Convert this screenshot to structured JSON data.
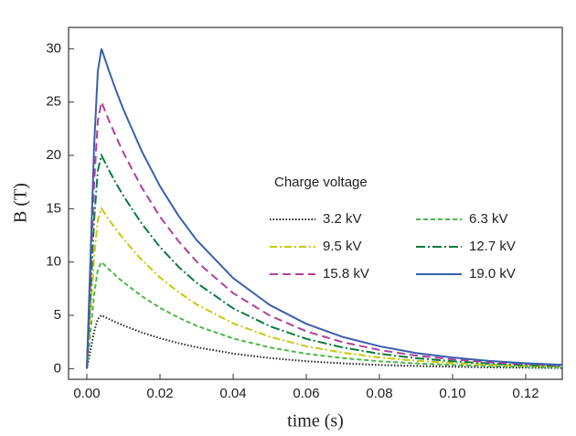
{
  "chart_data": {
    "type": "line",
    "x_label": "time (s)",
    "y_label": "B (T)",
    "legend_title": "Charge voltage",
    "x": [
      0,
      0.001,
      0.002,
      0.003,
      0.004,
      0.006,
      0.008,
      0.01,
      0.015,
      0.02,
      0.025,
      0.03,
      0.04,
      0.05,
      0.06,
      0.07,
      0.08,
      0.09,
      0.1,
      0.11,
      0.12,
      0.13
    ],
    "series": [
      {
        "name": "3.2 kV",
        "color": "#222222",
        "dash": "1.5,2",
        "values": [
          0,
          1.75,
          3.5,
          4.65,
          5,
          4.66,
          4.35,
          4.05,
          3.4,
          2.85,
          2.4,
          2.01,
          1.42,
          1,
          0.7,
          0.5,
          0.35,
          0.25,
          0.18,
          0.12,
          0.09,
          0.06
        ]
      },
      {
        "name": "6.3 kV",
        "color": "#4cb848",
        "dash": "5,3",
        "values": [
          0,
          3.5,
          7,
          9.3,
          10,
          9.32,
          8.69,
          8.1,
          6.8,
          5.7,
          4.79,
          4.02,
          2.83,
          1.99,
          1.4,
          0.99,
          0.7,
          0.49,
          0.35,
          0.24,
          0.17,
          0.12
        ]
      },
      {
        "name": "9.5 kV",
        "color": "#c8c810",
        "dash": "8,3,2,3",
        "values": [
          0,
          5.25,
          10.5,
          13.95,
          15,
          13.98,
          13.04,
          12.15,
          10.2,
          8.55,
          7.19,
          6.03,
          4.25,
          2.99,
          2.1,
          1.49,
          1.05,
          0.74,
          0.53,
          0.36,
          0.26,
          0.18
        ]
      },
      {
        "name": "12.7 kV",
        "color": "#0b7a3e",
        "dash": "10,3,2,3",
        "values": [
          0,
          7,
          14,
          18.6,
          20,
          18.64,
          17.38,
          16.2,
          13.6,
          11.4,
          9.58,
          8.04,
          5.66,
          3.98,
          2.8,
          1.98,
          1.4,
          0.98,
          0.7,
          0.48,
          0.34,
          0.24
        ]
      },
      {
        "name": "15.8 kV",
        "color": "#b0409c",
        "dash": "9,5",
        "values": [
          0,
          8.75,
          17.5,
          23.25,
          25,
          23.3,
          21.73,
          20.25,
          17,
          14.25,
          11.98,
          10.05,
          7.08,
          4.98,
          3.5,
          2.48,
          1.75,
          1.23,
          0.88,
          0.6,
          0.43,
          0.3
        ]
      },
      {
        "name": "19.0 kV",
        "color": "#3a5fae",
        "dash": "",
        "values": [
          0,
          10.5,
          21,
          27.9,
          30,
          27.96,
          26.07,
          24.3,
          20.4,
          17.1,
          14.37,
          12.06,
          8.49,
          5.97,
          4.2,
          2.97,
          2.1,
          1.47,
          1.05,
          0.72,
          0.51,
          0.36
        ]
      }
    ],
    "xlim": [
      -0.005,
      0.13
    ],
    "ylim": [
      -1,
      32
    ],
    "xticks": [
      {
        "value": 0,
        "label": "0.00"
      },
      0.02,
      0.04,
      0.06,
      0.08,
      {
        "value": 0.1,
        "label": "0.10"
      },
      0.12
    ],
    "yticks": [
      0,
      5,
      10,
      15,
      20,
      25,
      30
    ],
    "grid": false
  }
}
